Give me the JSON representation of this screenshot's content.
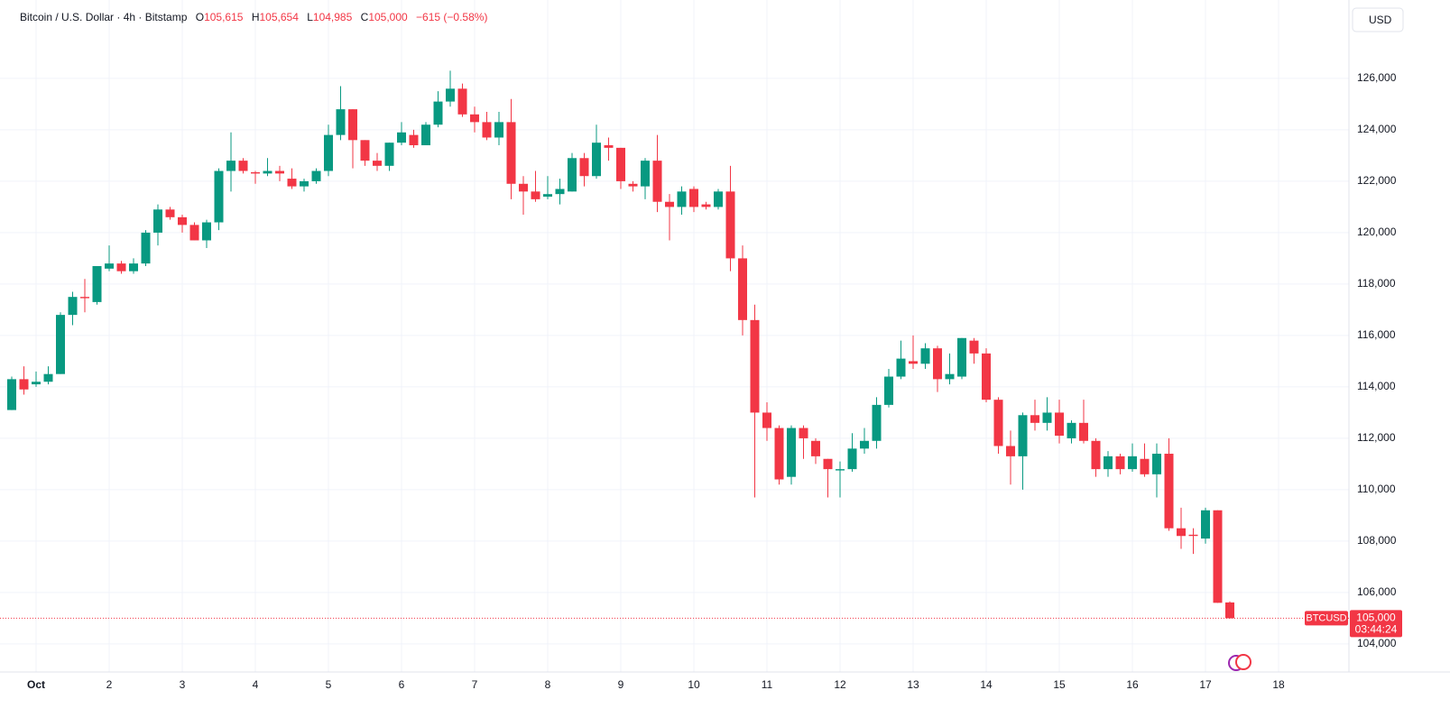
{
  "chart_data": {
    "type": "candlestick",
    "title": "Bitcoin / U.S. Dollar · 4h · Bitstamp",
    "ohlc_legend": [
      {
        "key": "O",
        "text": "105,615"
      },
      {
        "key": "H",
        "text": "105,654"
      },
      {
        "key": "L",
        "text": "104,985"
      },
      {
        "key": "C",
        "text": "105,000"
      }
    ],
    "change_label": "−615 (−0.58%)",
    "currency": "USD",
    "price_tag": {
      "symbol": "BTCUSD",
      "price": "105,000",
      "countdown": "03:44:24"
    },
    "up_color": "#089981",
    "down_color": "#f23645",
    "grid": true,
    "ylim": [
      102910,
      129050
    ],
    "yticks": [
      {
        "value": 104000,
        "label": "104,000"
      },
      {
        "value": 106000,
        "label": "106,000"
      },
      {
        "value": 108000,
        "label": "108,000"
      },
      {
        "value": 110000,
        "label": "110,000"
      },
      {
        "value": 112000,
        "label": "112,000"
      },
      {
        "value": 114000,
        "label": "114,000"
      },
      {
        "value": 116000,
        "label": "116,000"
      },
      {
        "value": 118000,
        "label": "118,000"
      },
      {
        "value": 120000,
        "label": "120,000"
      },
      {
        "value": 122000,
        "label": "122,000"
      },
      {
        "value": 124000,
        "label": "124,000"
      },
      {
        "value": 126000,
        "label": "126,000"
      }
    ],
    "categories": [
      null,
      null,
      "Oct",
      null,
      null,
      null,
      null,
      null,
      "2",
      null,
      null,
      null,
      null,
      null,
      "3",
      null,
      null,
      null,
      null,
      null,
      "4",
      null,
      null,
      null,
      null,
      null,
      "5",
      null,
      null,
      null,
      null,
      null,
      "6",
      null,
      null,
      null,
      null,
      null,
      "7",
      null,
      null,
      null,
      null,
      null,
      "8",
      null,
      null,
      null,
      null,
      null,
      "9",
      null,
      null,
      null,
      null,
      null,
      "10",
      null,
      null,
      null,
      null,
      null,
      "11",
      null,
      null,
      null,
      null,
      null,
      "12",
      null,
      null,
      null,
      null,
      null,
      "13",
      null,
      null,
      null,
      null,
      null,
      "14",
      null,
      null,
      null,
      null,
      null,
      "15",
      null,
      null,
      null,
      null,
      null,
      "16",
      null,
      null,
      null,
      null,
      null,
      "17",
      null,
      null,
      null,
      null,
      null,
      "18"
    ],
    "open": [
      113100,
      114300,
      114100,
      114200,
      114500,
      116800,
      117500,
      117300,
      118600,
      118800,
      118500,
      118800,
      120000,
      120900,
      120600,
      120300,
      119700,
      120400,
      122400,
      122800,
      122350,
      122300,
      122400,
      122100,
      121800,
      122000,
      122400,
      123800,
      124800,
      123600,
      122800,
      122600,
      123500,
      123800,
      123400,
      124200,
      125100,
      125600,
      124600,
      124300,
      123700,
      124300,
      121900,
      121600,
      121400,
      121500,
      121600,
      122900,
      122200,
      123400,
      123300,
      121900,
      121800,
      122800,
      121200,
      121000,
      121700,
      121100,
      121000,
      121600,
      119000,
      116600,
      113000,
      112400,
      110500,
      112400,
      111900,
      111200,
      110750,
      110800,
      111600,
      111900,
      113300,
      114400,
      115000,
      114900,
      115500,
      114300,
      114400,
      115800,
      115300,
      113500,
      111700,
      111300,
      112900,
      112600,
      113000,
      112000,
      112600,
      111900,
      110800,
      111300,
      110800,
      111200,
      110600,
      111400,
      108500,
      108250,
      108100,
      109200,
      105615,
      null,
      null,
      null,
      null
    ],
    "high": [
      114400,
      114800,
      114600,
      114800,
      116900,
      117700,
      118200,
      118700,
      119500,
      118900,
      119000,
      120100,
      121100,
      121000,
      120700,
      120400,
      120500,
      122500,
      123900,
      122900,
      122400,
      122900,
      122600,
      122500,
      122100,
      122500,
      124200,
      125700,
      124800,
      123600,
      123100,
      123500,
      124300,
      124000,
      124300,
      125500,
      126300,
      125800,
      124900,
      124700,
      124700,
      125200,
      122200,
      122400,
      122200,
      122100,
      123100,
      123100,
      124200,
      123700,
      123300,
      122000,
      122900,
      123800,
      121500,
      121800,
      121800,
      121200,
      121700,
      122600,
      119500,
      117200,
      113400,
      112500,
      112500,
      112500,
      112000,
      111200,
      111100,
      112200,
      112400,
      113600,
      114700,
      115800,
      116000,
      115700,
      115600,
      115300,
      115900,
      115900,
      115500,
      113600,
      112300,
      113000,
      113500,
      113600,
      113500,
      112700,
      113500,
      112000,
      111500,
      111400,
      111800,
      111800,
      111800,
      112000,
      109300,
      108500,
      109300,
      109200,
      105654,
      null,
      null,
      null,
      null
    ],
    "low": [
      113100,
      113700,
      114000,
      114100,
      114500,
      116400,
      116900,
      117200,
      118500,
      118400,
      118400,
      118700,
      119500,
      120500,
      120000,
      119700,
      119400,
      120100,
      121600,
      122300,
      121900,
      122200,
      122000,
      121700,
      121600,
      121900,
      122200,
      123600,
      122500,
      122600,
      122400,
      122400,
      123400,
      123300,
      123400,
      124100,
      124900,
      124500,
      123900,
      123600,
      123400,
      121300,
      120700,
      121200,
      121300,
      121100,
      121600,
      121800,
      122100,
      122800,
      121700,
      121600,
      121300,
      120800,
      119700,
      120700,
      120800,
      120900,
      120900,
      118500,
      116000,
      109700,
      111900,
      110200,
      110200,
      111200,
      111000,
      109700,
      109700,
      110700,
      111400,
      111600,
      113200,
      114300,
      114700,
      114700,
      113800,
      114100,
      114300,
      114900,
      113400,
      111400,
      110200,
      110000,
      112300,
      112300,
      111800,
      111800,
      111800,
      110500,
      110500,
      110600,
      110700,
      110500,
      109700,
      108400,
      107700,
      107500,
      107900,
      105600,
      104985,
      null,
      null,
      null,
      null
    ],
    "close": [
      114300,
      113900,
      114200,
      114500,
      116800,
      117500,
      117450,
      118700,
      118800,
      118500,
      118800,
      120000,
      120900,
      120600,
      120300,
      119700,
      120400,
      122400,
      122800,
      122400,
      122300,
      122400,
      122300,
      121800,
      122000,
      122400,
      123800,
      124800,
      123600,
      122800,
      122600,
      123500,
      123900,
      123400,
      124200,
      125100,
      125600,
      124600,
      124300,
      123700,
      124300,
      121900,
      121600,
      121300,
      121500,
      121700,
      122900,
      122200,
      123500,
      123300,
      122000,
      121800,
      122800,
      121200,
      121000,
      121600,
      121000,
      121000,
      121600,
      119000,
      116600,
      113000,
      112400,
      110400,
      112400,
      112000,
      111300,
      110800,
      110800,
      111600,
      111900,
      113300,
      114400,
      115100,
      114900,
      115500,
      114300,
      114500,
      115900,
      115300,
      113500,
      111700,
      111300,
      112900,
      112600,
      113000,
      112100,
      112600,
      111900,
      110800,
      111300,
      110800,
      111300,
      110600,
      111400,
      108500,
      108200,
      108200,
      109200,
      105600,
      105000,
      null,
      null,
      null,
      null
    ]
  }
}
